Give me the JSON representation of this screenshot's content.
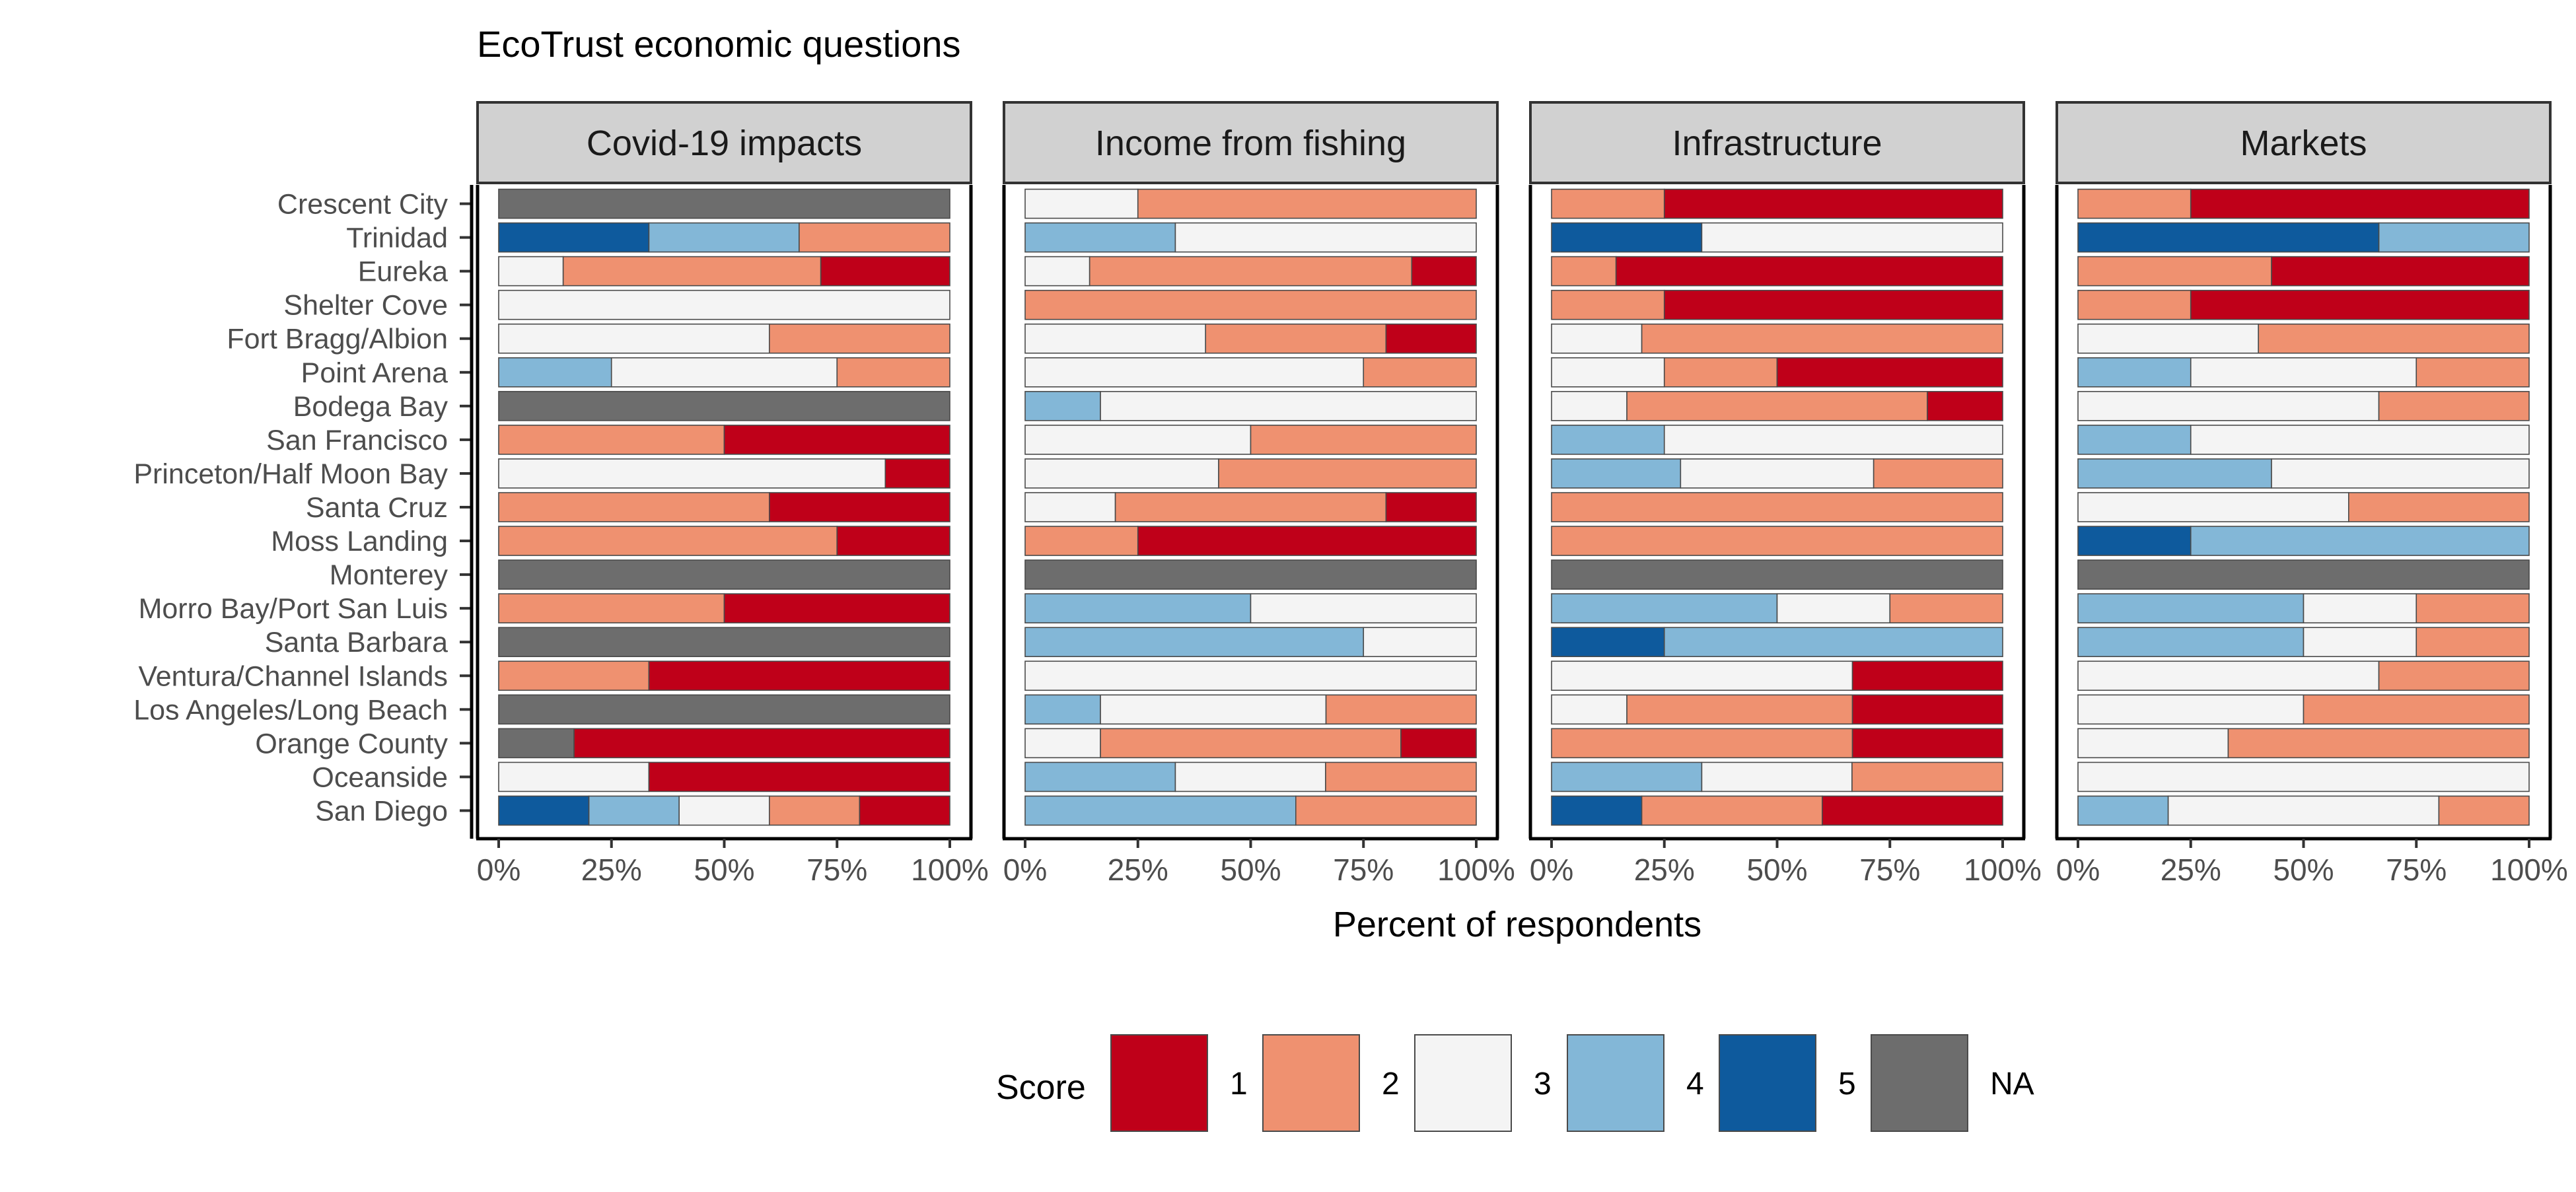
{
  "chart_data": {
    "type": "bar",
    "title": "EcoTrust economic questions",
    "xlabel": "Percent of respondents",
    "ylabel": "",
    "xlim": [
      0,
      100
    ],
    "x_ticks": [
      "0%",
      "25%",
      "50%",
      "75%",
      "100%"
    ],
    "categories": [
      "Crescent City",
      "Trinidad",
      "Eureka",
      "Shelter Cove",
      "Fort Bragg/Albion",
      "Point Arena",
      "Bodega Bay",
      "San Francisco",
      "Princeton/Half Moon Bay",
      "Santa Cruz",
      "Moss Landing",
      "Monterey",
      "Morro Bay/Port San Luis",
      "Santa Barbara",
      "Ventura/Channel Islands",
      "Los Angeles/Long Beach",
      "Orange County",
      "Oceanside",
      "San Diego"
    ],
    "legend": {
      "title": "Score",
      "position": "bottom",
      "items": [
        {
          "label": "1",
          "color": "#bf0019"
        },
        {
          "label": "2",
          "color": "#ef9170"
        },
        {
          "label": "3",
          "color": "#f4f4f4"
        },
        {
          "label": "4",
          "color": "#83b7d7"
        },
        {
          "label": "5",
          "color": "#0e5a9d"
        },
        {
          "label": "NA",
          "color": "#6d6d6d"
        }
      ]
    },
    "stack_order": [
      "5",
      "4",
      "3",
      "2",
      "1"
    ],
    "panels": [
      {
        "title": "Covid-19 impacts",
        "rows": [
          {
            "NA": 100
          },
          {
            "5": 33.3,
            "4": 33.3,
            "2": 33.4
          },
          {
            "3": 14.3,
            "2": 57.1,
            "1": 28.6
          },
          {
            "3": 100
          },
          {
            "3": 60,
            "2": 40
          },
          {
            "4": 25,
            "3": 50,
            "2": 25
          },
          {
            "NA": 100
          },
          {
            "2": 50,
            "1": 50
          },
          {
            "3": 85.7,
            "1": 14.3
          },
          {
            "2": 60,
            "1": 40
          },
          {
            "2": 75,
            "1": 25
          },
          {
            "NA": 100
          },
          {
            "2": 50,
            "1": 50
          },
          {
            "NA": 100
          },
          {
            "2": 33.3,
            "1": 66.7
          },
          {
            "NA": 100
          },
          {
            "NA": 16.7,
            "1": 83.3
          },
          {
            "3": 33.3,
            "1": 66.7
          },
          {
            "5": 20,
            "4": 20,
            "3": 20,
            "2": 20,
            "1": 20
          }
        ]
      },
      {
        "title": "Income from fishing",
        "rows": [
          {
            "3": 25,
            "2": 75
          },
          {
            "4": 33.3,
            "3": 66.7
          },
          {
            "3": 14.3,
            "2": 71.4,
            "1": 14.3
          },
          {
            "2": 100
          },
          {
            "3": 40,
            "2": 40,
            "1": 20
          },
          {
            "3": 75,
            "2": 25
          },
          {
            "4": 16.7,
            "3": 83.3
          },
          {
            "3": 50,
            "2": 50
          },
          {
            "3": 42.9,
            "2": 57.1
          },
          {
            "3": 20,
            "2": 60,
            "1": 20
          },
          {
            "2": 25,
            "1": 75
          },
          {
            "NA": 100
          },
          {
            "4": 50,
            "3": 50
          },
          {
            "4": 75,
            "3": 25
          },
          {
            "3": 100
          },
          {
            "4": 16.7,
            "3": 50,
            "2": 33.3
          },
          {
            "3": 16.7,
            "2": 66.6,
            "1": 16.7
          },
          {
            "4": 33.3,
            "3": 33.3,
            "2": 33.4
          },
          {
            "4": 60,
            "2": 40
          }
        ]
      },
      {
        "title": "Infrastructure",
        "rows": [
          {
            "2": 25,
            "1": 75
          },
          {
            "5": 33.3,
            "3": 66.7
          },
          {
            "2": 14.3,
            "1": 85.7
          },
          {
            "2": 25,
            "1": 75
          },
          {
            "3": 20,
            "2": 80
          },
          {
            "3": 25,
            "2": 25,
            "1": 50
          },
          {
            "3": 16.7,
            "2": 66.6,
            "1": 16.7
          },
          {
            "4": 25,
            "3": 75
          },
          {
            "4": 28.6,
            "3": 42.8,
            "2": 28.6
          },
          {
            "2": 100
          },
          {
            "2": 100
          },
          {
            "NA": 100
          },
          {
            "4": 50,
            "3": 25,
            "2": 25
          },
          {
            "5": 25,
            "4": 75
          },
          {
            "3": 66.7,
            "1": 33.3
          },
          {
            "3": 16.7,
            "2": 50,
            "1": 33.3
          },
          {
            "2": 66.7,
            "1": 33.3
          },
          {
            "4": 33.3,
            "3": 33.3,
            "2": 33.4
          },
          {
            "5": 20,
            "2": 40,
            "1": 40
          }
        ]
      },
      {
        "title": "Markets",
        "rows": [
          {
            "2": 25,
            "1": 75
          },
          {
            "5": 66.7,
            "4": 33.3
          },
          {
            "2": 42.9,
            "1": 57.1
          },
          {
            "2": 25,
            "1": 75
          },
          {
            "3": 40,
            "2": 60
          },
          {
            "4": 25,
            "3": 50,
            "2": 25
          },
          {
            "3": 66.7,
            "2": 33.3
          },
          {
            "4": 25,
            "3": 75
          },
          {
            "4": 42.9,
            "3": 57.1
          },
          {
            "3": 60,
            "2": 40
          },
          {
            "5": 25,
            "4": 75
          },
          {
            "NA": 100
          },
          {
            "4": 50,
            "3": 25,
            "2": 25
          },
          {
            "4": 50,
            "3": 25,
            "2": 25
          },
          {
            "3": 66.7,
            "2": 33.3
          },
          {
            "3": 50,
            "2": 50
          },
          {
            "3": 33.3,
            "2": 66.7
          },
          {
            "3": 100
          },
          {
            "4": 20,
            "3": 60,
            "2": 20
          }
        ]
      }
    ]
  }
}
